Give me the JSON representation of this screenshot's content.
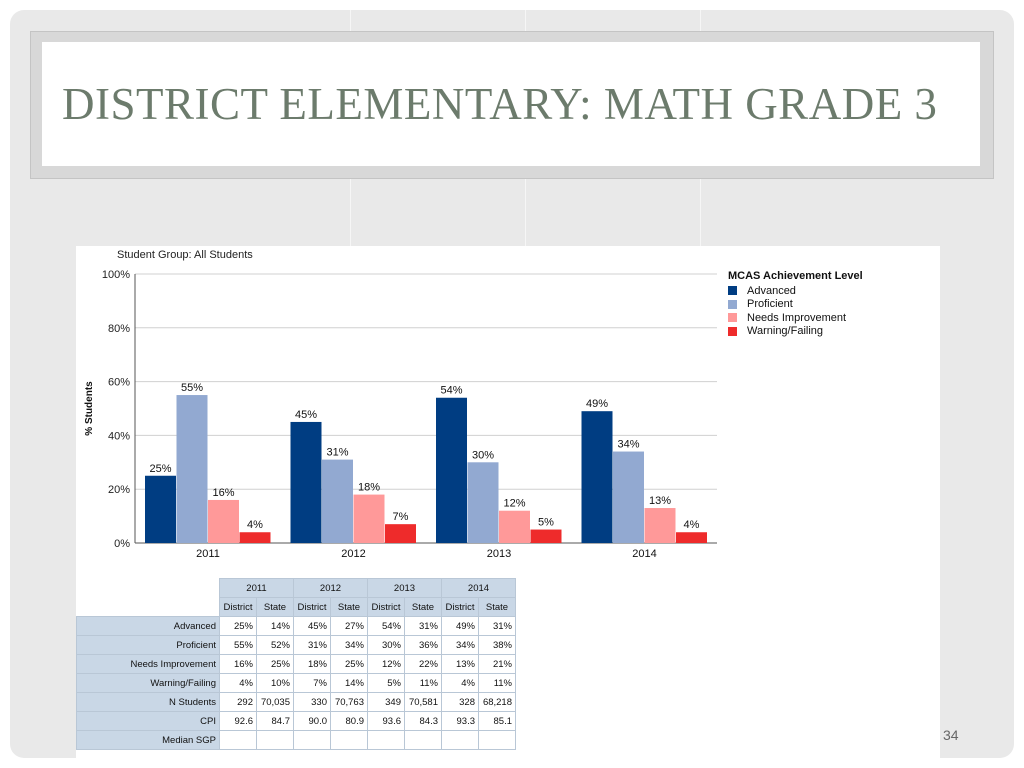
{
  "slide": {
    "title": "DISTRICT ELEMENTARY:  MATH GRADE 3",
    "page_number": "34"
  },
  "chart_data": {
    "type": "bar",
    "subtitle": "Student Group: All Students",
    "ylabel": "% Students",
    "ylim": [
      0,
      100
    ],
    "yticks": [
      "0%",
      "20%",
      "40%",
      "60%",
      "80%",
      "100%"
    ],
    "categories": [
      "2011",
      "2012",
      "2013",
      "2014"
    ],
    "legend_title": "MCAS Achievement Level",
    "legend_position": "right",
    "grid": true,
    "series": [
      {
        "name": "Advanced",
        "color": "#003d82",
        "values": [
          25,
          45,
          54,
          49
        ],
        "labels": [
          "25%",
          "45%",
          "54%",
          "49%"
        ]
      },
      {
        "name": "Proficient",
        "color": "#92a9d1",
        "values": [
          55,
          31,
          30,
          34
        ],
        "labels": [
          "55%",
          "31%",
          "30%",
          "34%"
        ]
      },
      {
        "name": "Needs Improvement",
        "color": "#ff9999",
        "values": [
          16,
          18,
          12,
          13
        ],
        "labels": [
          "16%",
          "18%",
          "12%",
          "13%"
        ]
      },
      {
        "name": "Warning/Failing",
        "color": "#ee2b2b",
        "values": [
          4,
          7,
          5,
          4
        ],
        "labels": [
          "4%",
          "7%",
          "5%",
          "4%"
        ]
      }
    ]
  },
  "table": {
    "years": [
      "2011",
      "2012",
      "2013",
      "2014"
    ],
    "subheaders": [
      "District",
      "State"
    ],
    "rows": [
      {
        "label": "Advanced",
        "cells": [
          "25%",
          "14%",
          "45%",
          "27%",
          "54%",
          "31%",
          "49%",
          "31%"
        ]
      },
      {
        "label": "Proficient",
        "cells": [
          "55%",
          "52%",
          "31%",
          "34%",
          "30%",
          "36%",
          "34%",
          "38%"
        ]
      },
      {
        "label": "Needs Improvement",
        "cells": [
          "16%",
          "25%",
          "18%",
          "25%",
          "12%",
          "22%",
          "13%",
          "21%"
        ]
      },
      {
        "label": "Warning/Failing",
        "cells": [
          "4%",
          "10%",
          "7%",
          "14%",
          "5%",
          "11%",
          "4%",
          "11%"
        ]
      },
      {
        "label": "N Students",
        "cells": [
          "292",
          "70,035",
          "330",
          "70,763",
          "349",
          "70,581",
          "328",
          "68,218"
        ]
      },
      {
        "label": "CPI",
        "cells": [
          "92.6",
          "84.7",
          "90.0",
          "80.9",
          "93.6",
          "84.3",
          "93.3",
          "85.1"
        ]
      },
      {
        "label": "Median SGP",
        "cells": [
          "",
          "",
          "",
          "",
          "",
          "",
          "",
          ""
        ]
      }
    ]
  }
}
